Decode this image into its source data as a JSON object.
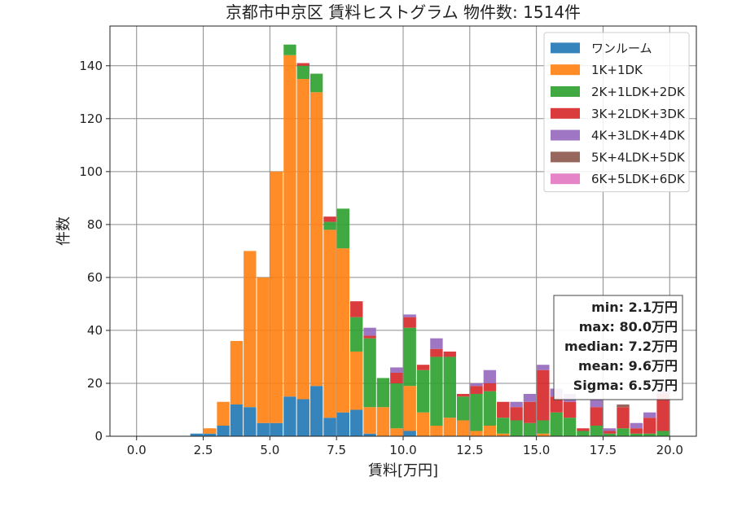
{
  "chart_data": {
    "type": "bar",
    "stacked": true,
    "title": "京都市中京区 賃料ヒストグラム 物件数: 1514件",
    "xlabel": "賃料[万円]",
    "ylabel": "件数",
    "xlim": [
      -1,
      21
    ],
    "ylim": [
      0,
      155
    ],
    "xticks": [
      "0.0",
      "2.5",
      "5.0",
      "7.5",
      "10.0",
      "12.5",
      "15.0",
      "17.5",
      "20.0"
    ],
    "yticks": [
      "0",
      "20",
      "40",
      "60",
      "80",
      "100",
      "120",
      "140"
    ],
    "grid": true,
    "legend_position": "top-right",
    "bin_width": 0.5,
    "bins": [
      2.0,
      2.5,
      3.0,
      3.5,
      4.0,
      4.5,
      5.0,
      5.5,
      6.0,
      6.5,
      7.0,
      7.5,
      8.0,
      8.5,
      9.0,
      9.5,
      10.0,
      10.5,
      11.0,
      11.5,
      12.0,
      12.5,
      13.0,
      13.5,
      14.0,
      14.5,
      15.0,
      15.5,
      16.0,
      16.5,
      17.0,
      17.5,
      18.0,
      18.5,
      19.0,
      19.5
    ],
    "series": [
      {
        "name": "ワンルーム",
        "color": "#1f77b4",
        "values": [
          1,
          1,
          4,
          12,
          11,
          5,
          5,
          15,
          14,
          19,
          7,
          9,
          10,
          1,
          0,
          0,
          2,
          0,
          0,
          0,
          0,
          0,
          0,
          0,
          0,
          0,
          0,
          0,
          0,
          0,
          0,
          0,
          0,
          0,
          0,
          0
        ]
      },
      {
        "name": "1K+1DK",
        "color": "#ff7f0e",
        "values": [
          0,
          2,
          9,
          24,
          59,
          55,
          95,
          129,
          121,
          111,
          71,
          62,
          22,
          10,
          11,
          3,
          17,
          9,
          4,
          7,
          6,
          2,
          4,
          1,
          0,
          0,
          1,
          0,
          0,
          0,
          0,
          0,
          0,
          0,
          0,
          0
        ]
      },
      {
        "name": "2K+1LDK+2DK",
        "color": "#2ca02c",
        "values": [
          0,
          0,
          0,
          0,
          0,
          0,
          0,
          4,
          5,
          7,
          3,
          15,
          13,
          26,
          11,
          17,
          22,
          16,
          26,
          23,
          9,
          14,
          13,
          6,
          6,
          5,
          5,
          9,
          7,
          2,
          4,
          1,
          3,
          1,
          1,
          2
        ]
      },
      {
        "name": "3K+2LDK+3DK",
        "color": "#d62728",
        "values": [
          0,
          0,
          0,
          0,
          0,
          0,
          0,
          0,
          1,
          0,
          2,
          0,
          6,
          1,
          0,
          4,
          4,
          2,
          3,
          2,
          1,
          3,
          3,
          6,
          5,
          8,
          19,
          6,
          6,
          1,
          7,
          1,
          8,
          2,
          6,
          14
        ]
      },
      {
        "name": "4K+3LDK+4DK",
        "color": "#9467bd",
        "values": [
          0,
          0,
          0,
          0,
          0,
          0,
          0,
          0,
          0,
          0,
          0,
          0,
          0,
          3,
          0,
          2,
          1,
          0,
          4,
          0,
          0,
          1,
          5,
          0,
          2,
          3,
          2,
          3,
          3,
          0,
          3,
          1,
          0,
          2,
          2,
          1
        ]
      },
      {
        "name": "5K+4LDK+5DK",
        "color": "#8c564b",
        "values": [
          0,
          0,
          0,
          0,
          0,
          0,
          0,
          0,
          0,
          0,
          0,
          0,
          0,
          0,
          0,
          0,
          0,
          0,
          0,
          0,
          0,
          0,
          0,
          0,
          0,
          0,
          0,
          0,
          0,
          0,
          0,
          0,
          1,
          0,
          0,
          0
        ]
      },
      {
        "name": "6K+5LDK+6DK",
        "color": "#e377c2",
        "values": [
          0,
          0,
          0,
          0,
          0,
          0,
          0,
          0,
          0,
          0,
          0,
          0,
          0,
          0,
          0,
          0,
          0,
          0,
          0,
          0,
          0,
          0,
          0,
          0,
          0,
          0,
          0,
          0,
          0,
          0,
          0,
          0,
          0,
          0,
          0,
          0
        ]
      }
    ],
    "stats": [
      "min: 2.1万円",
      "max: 80.0万円",
      "median: 7.2万円",
      "mean: 9.6万円",
      "Sigma: 6.5万円"
    ]
  }
}
